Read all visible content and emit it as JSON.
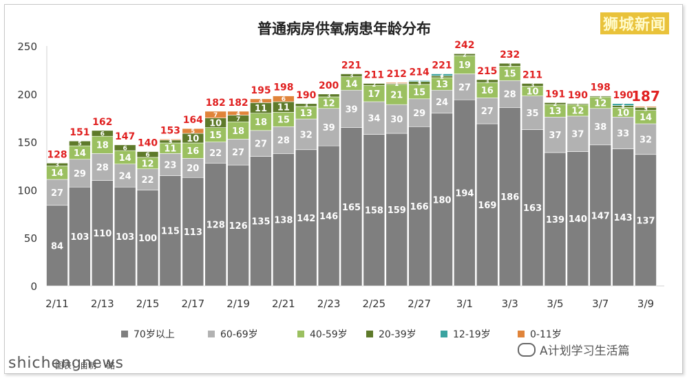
{
  "brand": "狮城新闻",
  "watermark": "shichengnews",
  "wechat": "A计划学习生活篇",
  "caption": "图表：自制  ·  ·路",
  "chart_data": {
    "type": "bar",
    "stacked": true,
    "title": "普通病房供氧病患年龄分布",
    "ylim": [
      0,
      250
    ],
    "yticks": [
      0,
      50,
      100,
      150,
      200,
      250
    ],
    "categories": [
      "2/11",
      "2/12",
      "2/13",
      "2/14",
      "2/15",
      "2/16",
      "2/17",
      "2/18",
      "2/19",
      "2/20",
      "2/21",
      "2/22",
      "2/23",
      "2/24",
      "2/25",
      "2/26",
      "2/27",
      "2/28",
      "3/1",
      "3/2",
      "3/3",
      "3/4",
      "3/5",
      "3/6",
      "3/7",
      "3/8",
      "3/9"
    ],
    "xtick_labels": [
      "2/11",
      "",
      "2/13",
      "",
      "2/15",
      "",
      "2/17",
      "",
      "2/19",
      "",
      "2/21",
      "",
      "2/23",
      "",
      "2/25",
      "",
      "2/27",
      "",
      "3/1",
      "",
      "3/3",
      "",
      "3/5",
      "",
      "3/7",
      "",
      "3/9"
    ],
    "totals": [
      128,
      151,
      162,
      147,
      140,
      153,
      164,
      182,
      182,
      195,
      198,
      190,
      200,
      221,
      211,
      212,
      214,
      221,
      242,
      215,
      232,
      211,
      191,
      190,
      198,
      190,
      187
    ],
    "series": [
      {
        "name": "70岁以上",
        "color": "#7f7f7f",
        "values": [
          84,
          103,
          110,
          103,
          100,
          115,
          113,
          128,
          126,
          135,
          138,
          142,
          146,
          165,
          158,
          159,
          166,
          180,
          194,
          169,
          186,
          163,
          139,
          140,
          147,
          143,
          137
        ]
      },
      {
        "name": "60-69岁",
        "color": "#b2b2b2",
        "values": [
          27,
          29,
          28,
          24,
          22,
          23,
          20,
          22,
          27,
          27,
          28,
          32,
          39,
          39,
          34,
          30,
          29,
          24,
          27,
          27,
          28,
          35,
          37,
          37,
          38,
          33,
          32
        ]
      },
      {
        "name": "40-59岁",
        "color": "#9bc060",
        "values": [
          14,
          14,
          18,
          14,
          12,
          11,
          16,
          15,
          18,
          18,
          15,
          13,
          12,
          14,
          17,
          21,
          15,
          13,
          19,
          16,
          15,
          10,
          13,
          12,
          12,
          10,
          14
        ]
      },
      {
        "name": "20-39岁",
        "color": "#5e7a2a",
        "values": [
          3,
          5,
          6,
          6,
          6,
          3,
          10,
          10,
          7,
          11,
          11,
          3,
          3,
          3,
          2,
          1,
          3,
          2,
          2,
          3,
          3,
          3,
          2,
          1,
          1,
          2,
          3
        ]
      },
      {
        "name": "12-19岁",
        "color": "#3aa3a0",
        "values": [
          0,
          0,
          0,
          0,
          0,
          0,
          0,
          0,
          0,
          0,
          0,
          0,
          0,
          0,
          0,
          0,
          1,
          2,
          0,
          0,
          0,
          0,
          0,
          0,
          0,
          2,
          0
        ]
      },
      {
        "name": "0-11岁",
        "color": "#e0843a",
        "values": [
          0,
          0,
          0,
          0,
          0,
          1,
          5,
          7,
          4,
          4,
          6,
          0,
          0,
          0,
          0,
          1,
          0,
          0,
          0,
          0,
          0,
          0,
          0,
          0,
          0,
          0,
          1
        ]
      }
    ],
    "total_color": "#e02020",
    "grid": false,
    "legend_position": "bottom"
  }
}
